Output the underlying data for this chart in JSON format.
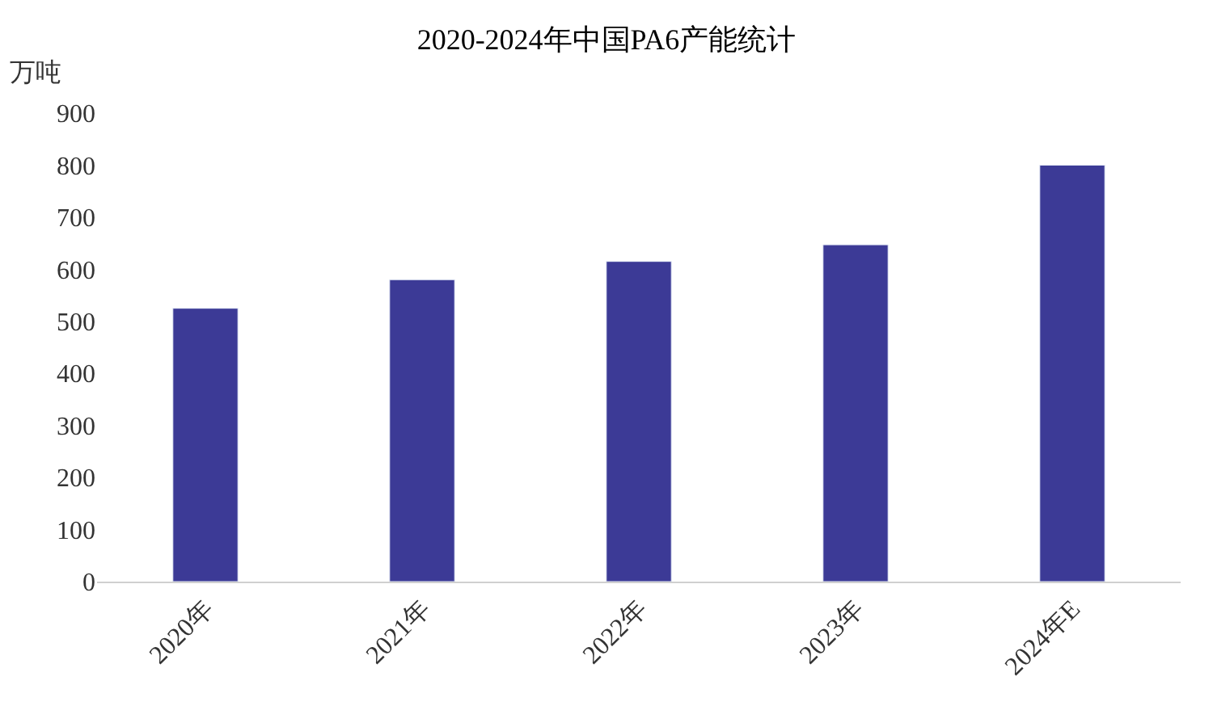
{
  "chart_data": {
    "type": "bar",
    "title": "2020-2024年中国PA6产能统计",
    "ylabel": "万吨",
    "categories": [
      "2020年",
      "2021年",
      "2022年",
      "2023年",
      "2024年E"
    ],
    "values": [
      525,
      580,
      615,
      647,
      800
    ],
    "color": "#3c3a96",
    "ylim": [
      0,
      900
    ],
    "yticks": [
      0,
      100,
      200,
      300,
      400,
      500,
      600,
      700,
      800,
      900
    ],
    "legend": false
  }
}
